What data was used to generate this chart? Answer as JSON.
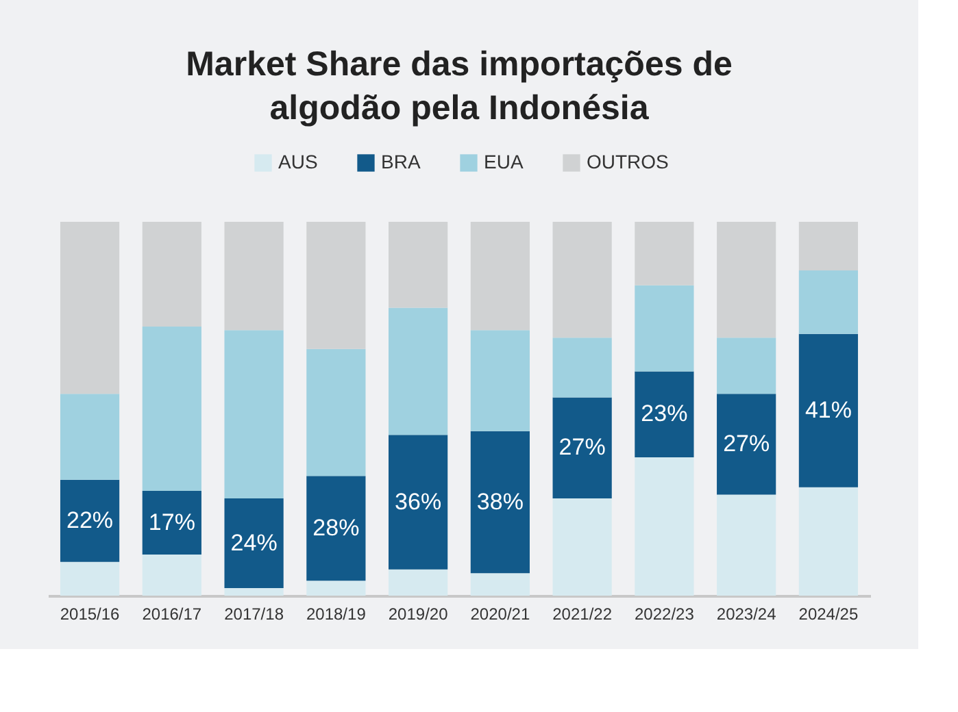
{
  "chart_data": {
    "type": "bar",
    "stacked": true,
    "title": [
      "Market Share das importações de",
      "algodão pela Indonésia"
    ],
    "categories": [
      "2015/16",
      "2016/17",
      "2017/18",
      "2018/19",
      "2019/20",
      "2020/21",
      "2021/22",
      "2022/23",
      "2023/24",
      "2024/25"
    ],
    "series": [
      {
        "name": "AUS",
        "color": "#d6eaf0",
        "values": [
          9,
          11,
          2,
          4,
          7,
          6,
          26,
          37,
          27,
          29
        ]
      },
      {
        "name": "BRA",
        "color": "#125a8a",
        "values": [
          22,
          17,
          24,
          28,
          36,
          38,
          27,
          23,
          27,
          41
        ],
        "value_labels": [
          "22%",
          "17%",
          "24%",
          "28%",
          "36%",
          "38%",
          "27%",
          "23%",
          "27%",
          "41%"
        ]
      },
      {
        "name": "EUA",
        "color": "#9fd1e0",
        "values": [
          23,
          44,
          45,
          34,
          34,
          27,
          16,
          23,
          15,
          17
        ]
      },
      {
        "name": "OUTROS",
        "color": "#d0d2d3",
        "values": [
          46,
          28,
          29,
          34,
          23,
          29,
          31,
          17,
          31,
          13
        ]
      }
    ],
    "ylim": [
      0,
      100
    ],
    "tick_labels": "x",
    "legend": "top"
  }
}
